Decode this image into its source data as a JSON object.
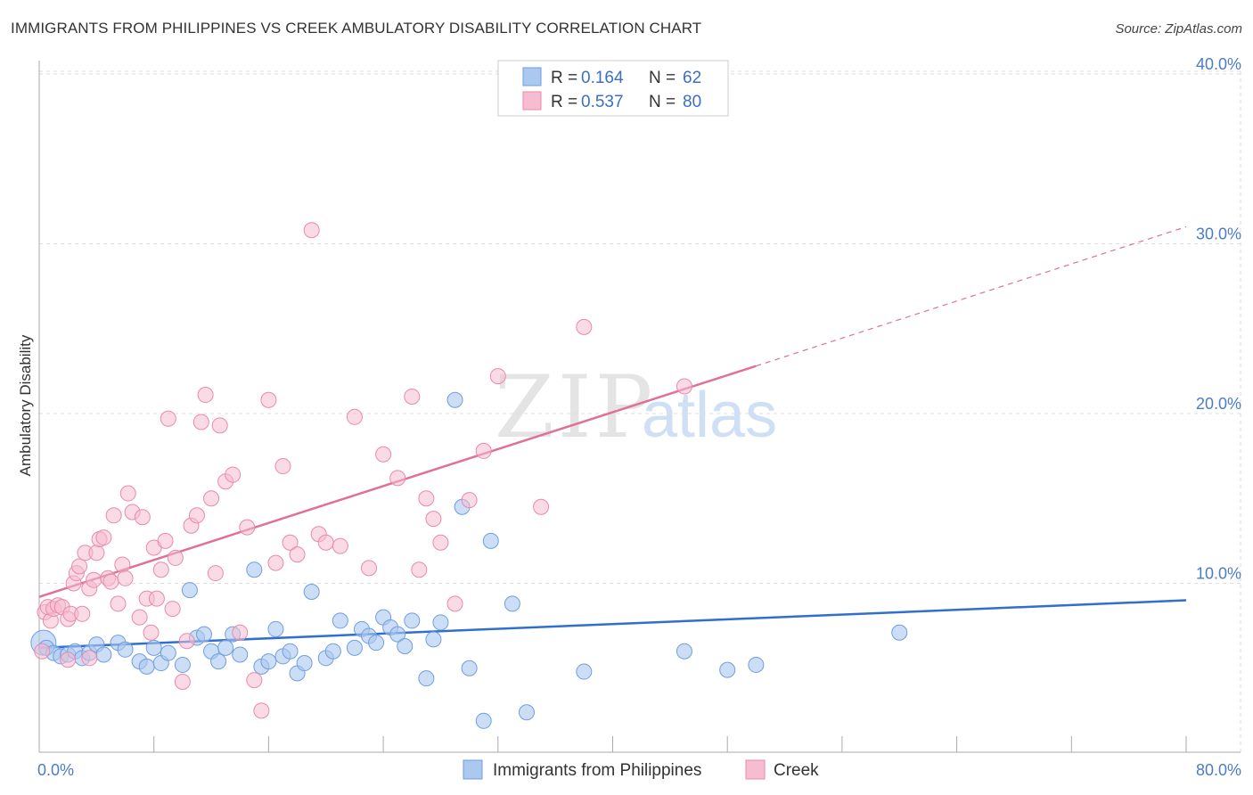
{
  "header": {
    "title": "IMMIGRANTS FROM PHILIPPINES VS CREEK AMBULATORY DISABILITY CORRELATION CHART",
    "source": "Source: ZipAtlas.com"
  },
  "watermark": {
    "zip": "ZIP",
    "atlas": "atlas"
  },
  "colors": {
    "blue_fill": "#aac8f0",
    "blue_stroke": "#6f9ee0",
    "blue_line": "#2f6fd0",
    "pink_fill": "#f6bcd0",
    "pink_stroke": "#e98aab",
    "pink_line": "#e0709a",
    "grid": "#dddddd",
    "tick_text": "#4a7cc9"
  },
  "legend": {
    "rows": [
      {
        "r_label": "R = ",
        "r_value": "0.164",
        "n_label": "N = ",
        "n_value": "62",
        "color": "blue"
      },
      {
        "r_label": "R = ",
        "r_value": "0.537",
        "n_label": "N = ",
        "n_value": "80",
        "color": "pink"
      }
    ]
  },
  "chart_data": {
    "type": "scatter",
    "xlabel": "",
    "ylabel": "Ambulatory Disability",
    "xlim": [
      0,
      80
    ],
    "ylim": [
      0,
      42
    ],
    "x_tick_labels": [
      "0.0%",
      "80.0%"
    ],
    "y_ticks": [
      10,
      20,
      30,
      40
    ],
    "y_tick_labels": [
      "10.0%",
      "20.0%",
      "30.0%",
      "40.0%"
    ],
    "grid": true,
    "legend_position": "top-center",
    "series": [
      {
        "name": "Immigrants from Philippines",
        "color": "blue",
        "trend": {
          "x0": 0,
          "y0": 6.2,
          "x1": 80,
          "y1": 9.0
        },
        "points": [
          [
            0.3,
            6.5
          ],
          [
            0.5,
            6.2
          ],
          [
            1.0,
            5.9
          ],
          [
            1.5,
            5.7
          ],
          [
            2.0,
            5.8
          ],
          [
            2.5,
            6.0
          ],
          [
            3.0,
            5.6
          ],
          [
            3.5,
            5.9
          ],
          [
            4.0,
            6.4
          ],
          [
            4.5,
            5.8
          ],
          [
            5.5,
            6.5
          ],
          [
            6.0,
            6.1
          ],
          [
            7.0,
            5.4
          ],
          [
            7.5,
            5.1
          ],
          [
            8.0,
            6.2
          ],
          [
            8.5,
            5.3
          ],
          [
            9.0,
            5.9
          ],
          [
            10.0,
            5.2
          ],
          [
            10.5,
            9.6
          ],
          [
            11.0,
            6.8
          ],
          [
            11.5,
            7.0
          ],
          [
            12.0,
            6.0
          ],
          [
            12.5,
            5.4
          ],
          [
            13.0,
            6.2
          ],
          [
            13.5,
            7.0
          ],
          [
            14.0,
            5.8
          ],
          [
            15.0,
            10.8
          ],
          [
            15.5,
            5.1
          ],
          [
            16.0,
            5.4
          ],
          [
            16.5,
            7.3
          ],
          [
            17.0,
            5.7
          ],
          [
            17.5,
            6.0
          ],
          [
            18.0,
            4.7
          ],
          [
            18.5,
            5.3
          ],
          [
            19.0,
            9.5
          ],
          [
            20.0,
            5.6
          ],
          [
            20.5,
            6.0
          ],
          [
            21.0,
            7.8
          ],
          [
            22.0,
            6.2
          ],
          [
            22.5,
            7.3
          ],
          [
            23.0,
            6.9
          ],
          [
            23.5,
            6.5
          ],
          [
            24.0,
            8.0
          ],
          [
            24.5,
            7.4
          ],
          [
            25.0,
            7.0
          ],
          [
            25.5,
            6.3
          ],
          [
            26.0,
            7.8
          ],
          [
            27.0,
            4.4
          ],
          [
            27.5,
            6.7
          ],
          [
            28.0,
            7.7
          ],
          [
            29.0,
            20.8
          ],
          [
            29.5,
            14.5
          ],
          [
            30.0,
            5.0
          ],
          [
            31.0,
            1.9
          ],
          [
            31.5,
            12.5
          ],
          [
            33.0,
            8.8
          ],
          [
            34.0,
            2.4
          ],
          [
            38.0,
            4.8
          ],
          [
            45.0,
            6.0
          ],
          [
            48.0,
            4.9
          ],
          [
            50.0,
            5.2
          ],
          [
            60.0,
            7.1
          ]
        ]
      },
      {
        "name": "Creek",
        "color": "pink",
        "trend": {
          "x0": 0,
          "y0": 9.2,
          "x1": 50,
          "y1": 22.8,
          "dash_x1": 80,
          "dash_y1": 31.0
        },
        "points": [
          [
            0.2,
            6.0
          ],
          [
            0.4,
            8.3
          ],
          [
            0.6,
            8.6
          ],
          [
            0.8,
            7.8
          ],
          [
            1.0,
            8.5
          ],
          [
            1.3,
            8.7
          ],
          [
            1.6,
            8.6
          ],
          [
            2.0,
            7.9
          ],
          [
            2.2,
            8.2
          ],
          [
            2.4,
            10.0
          ],
          [
            2.6,
            10.6
          ],
          [
            2.8,
            11.0
          ],
          [
            3.0,
            8.2
          ],
          [
            3.2,
            11.8
          ],
          [
            3.5,
            9.7
          ],
          [
            3.8,
            10.2
          ],
          [
            4.0,
            11.8
          ],
          [
            4.2,
            12.6
          ],
          [
            4.5,
            12.7
          ],
          [
            4.8,
            10.3
          ],
          [
            5.0,
            10.1
          ],
          [
            5.2,
            14.0
          ],
          [
            5.5,
            8.8
          ],
          [
            5.8,
            11.1
          ],
          [
            6.0,
            10.3
          ],
          [
            6.2,
            15.3
          ],
          [
            6.5,
            14.2
          ],
          [
            7.0,
            8.0
          ],
          [
            7.2,
            13.9
          ],
          [
            7.5,
            9.1
          ],
          [
            7.8,
            7.1
          ],
          [
            8.0,
            12.1
          ],
          [
            8.2,
            9.1
          ],
          [
            8.5,
            10.8
          ],
          [
            8.8,
            12.5
          ],
          [
            9.0,
            19.7
          ],
          [
            9.3,
            8.5
          ],
          [
            9.5,
            11.5
          ],
          [
            10.0,
            4.2
          ],
          [
            10.3,
            6.6
          ],
          [
            10.6,
            13.4
          ],
          [
            11.0,
            14.0
          ],
          [
            11.3,
            19.5
          ],
          [
            11.6,
            21.1
          ],
          [
            12.0,
            15.0
          ],
          [
            12.3,
            10.6
          ],
          [
            12.6,
            19.3
          ],
          [
            13.0,
            16.0
          ],
          [
            13.5,
            16.4
          ],
          [
            14.0,
            7.1
          ],
          [
            14.5,
            13.3
          ],
          [
            15.0,
            4.3
          ],
          [
            15.5,
            2.5
          ],
          [
            16.0,
            20.8
          ],
          [
            16.5,
            11.2
          ],
          [
            17.0,
            16.9
          ],
          [
            17.5,
            12.4
          ],
          [
            18.0,
            11.7
          ],
          [
            19.0,
            30.8
          ],
          [
            19.5,
            12.9
          ],
          [
            20.0,
            12.4
          ],
          [
            21.0,
            12.2
          ],
          [
            22.0,
            19.8
          ],
          [
            23.0,
            10.9
          ],
          [
            24.0,
            17.6
          ],
          [
            25.0,
            16.2
          ],
          [
            26.0,
            21.0
          ],
          [
            26.5,
            10.8
          ],
          [
            27.0,
            15.0
          ],
          [
            27.5,
            13.8
          ],
          [
            28.0,
            12.4
          ],
          [
            29.0,
            8.8
          ],
          [
            30.0,
            14.9
          ],
          [
            31.0,
            17.8
          ],
          [
            32.0,
            22.2
          ],
          [
            35.0,
            14.5
          ],
          [
            38.0,
            25.1
          ],
          [
            45.0,
            21.6
          ],
          [
            2.0,
            5.5
          ],
          [
            3.5,
            5.6
          ]
        ]
      }
    ]
  },
  "bottom_legend": [
    {
      "label": "Immigrants from Philippines",
      "color": "blue"
    },
    {
      "label": "Creek",
      "color": "pink"
    }
  ]
}
